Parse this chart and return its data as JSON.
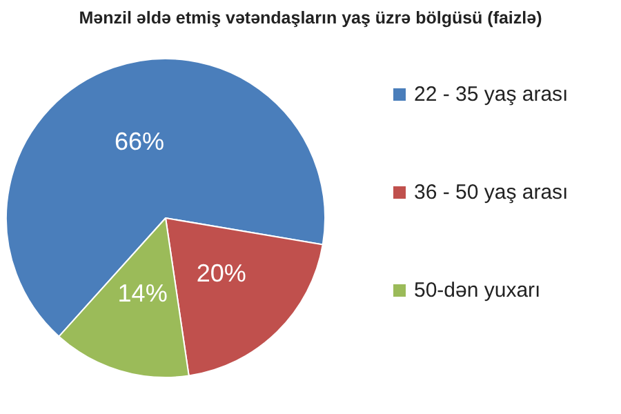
{
  "chart_data": {
    "type": "pie",
    "title": "Mənzil əldə etmiş vətəndaşların yaş üzrə bölgüsü (faizlə)",
    "categories": [
      "22 - 35 yaş arası",
      "36 - 50 yaş arası",
      "50-dən yuxarı"
    ],
    "values": [
      66,
      20,
      14
    ],
    "colors": [
      "#4a7ebb",
      "#c0504d",
      "#9bbb59"
    ],
    "value_labels": [
      "66%",
      "20%",
      "14%"
    ],
    "legend": "right"
  }
}
